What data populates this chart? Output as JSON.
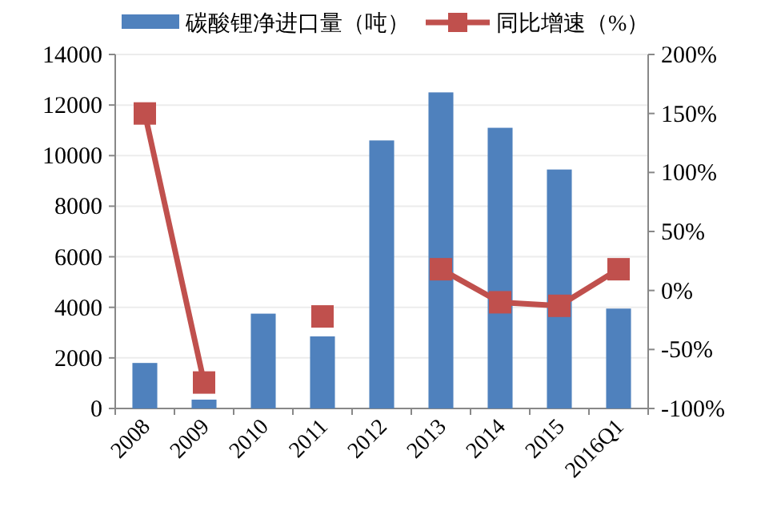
{
  "chart_data": {
    "type": "bar",
    "categories": [
      "2008",
      "2009",
      "2010",
      "2011",
      "2012",
      "2013",
      "2014",
      "2015",
      "2016Q1"
    ],
    "series": [
      {
        "name": "碳酸锂净进口量（吨）",
        "color": "#4f81bd",
        "values": [
          1800,
          350,
          3750,
          2850,
          10600,
          12500,
          11100,
          9450,
          3950
        ]
      },
      {
        "name": "同比增速（%）",
        "type": "line",
        "axis": "y2",
        "color": "#c0504d",
        "marker": "square",
        "values": [
          150,
          -78,
          null,
          -22,
          null,
          18,
          -10,
          -13,
          18
        ]
      }
    ],
    "ylim": [
      0,
      14000
    ],
    "yticks": [
      0,
      2000,
      4000,
      6000,
      8000,
      10000,
      12000,
      14000
    ],
    "y2lim": [
      -100,
      200
    ],
    "y2ticks": [
      {
        "value": -100,
        "label": "-100%"
      },
      {
        "value": -50,
        "label": "-50%"
      },
      {
        "value": 0,
        "label": "0%"
      },
      {
        "value": 50,
        "label": "50%"
      },
      {
        "value": 100,
        "label": "100%"
      },
      {
        "value": 150,
        "label": "150%"
      },
      {
        "value": 200,
        "label": "200%"
      }
    ],
    "grid": "y",
    "legend": "top"
  }
}
